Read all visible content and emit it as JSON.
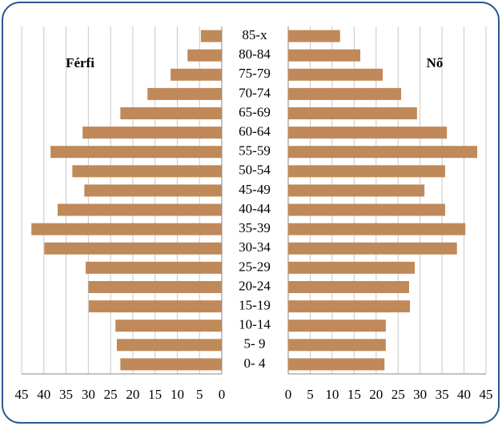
{
  "chart_data": {
    "type": "pyramid",
    "categories": [
      "85-x",
      "80-84",
      "75-79",
      "70-74",
      "65-69",
      "60-64",
      "55-59",
      "50-54",
      "45-49",
      "40-44",
      "35-39",
      "30-34",
      "25-29",
      "20-24",
      "15-19",
      "10-14",
      "5- 9",
      "0- 4"
    ],
    "series": [
      {
        "name": "Férfi",
        "color": "#c0895a",
        "side": "left",
        "values": [
          4.7,
          7.7,
          11.5,
          16.7,
          22.8,
          31.3,
          38.5,
          33.6,
          30.9,
          36.9,
          42.8,
          39.9,
          30.6,
          30.0,
          29.9,
          23.9,
          23.6,
          22.8
        ]
      },
      {
        "name": "Nő",
        "color": "#c0895a",
        "side": "right",
        "values": [
          11.8,
          16.4,
          21.5,
          25.7,
          29.3,
          36.1,
          43.0,
          35.7,
          31.0,
          35.7,
          40.3,
          38.4,
          28.8,
          27.5,
          27.7,
          22.2,
          22.2,
          21.9
        ]
      }
    ],
    "xlim": [
      0,
      45
    ],
    "xticks": [
      0,
      5,
      10,
      15,
      20,
      25,
      30,
      35,
      40,
      45
    ],
    "grid": true
  }
}
